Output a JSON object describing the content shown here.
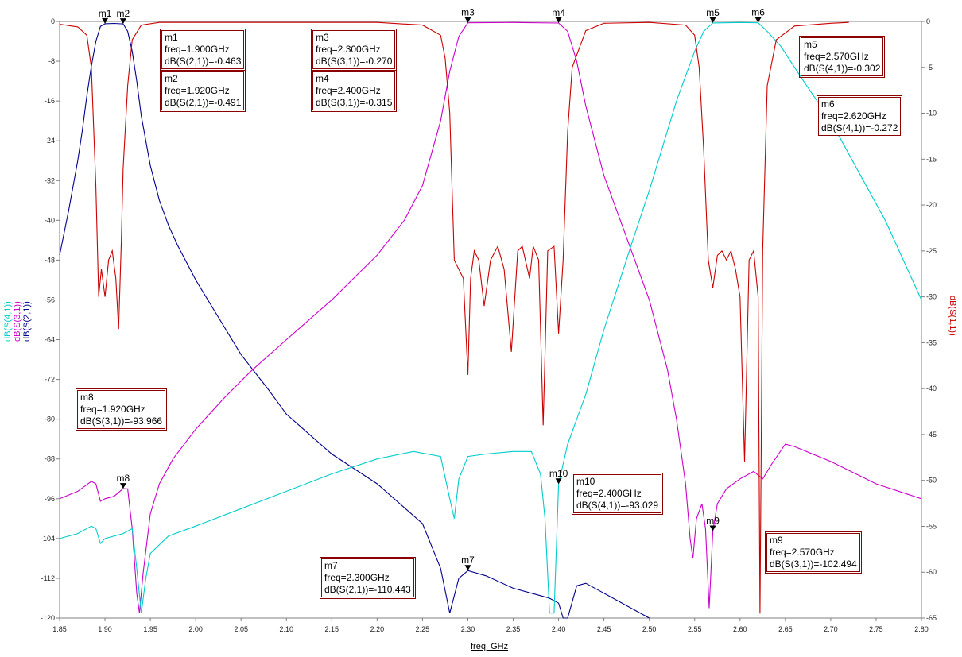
{
  "chart_data": {
    "type": "line",
    "xlabel": "freq, GHz",
    "xlim": [
      1.85,
      2.8
    ],
    "x_ticks": [
      "1.85",
      "1.90",
      "1.95",
      "2.00",
      "2.05",
      "2.10",
      "2.15",
      "2.20",
      "2.25",
      "2.30",
      "2.35",
      "2.40",
      "2.45",
      "2.50",
      "2.55",
      "2.60",
      "2.65",
      "2.70",
      "2.75",
      "2.80"
    ],
    "left_axis": {
      "labels": [
        "dB(S(4,1))",
        "dB(S(3,1))",
        "dB(S(2,1))"
      ],
      "ylim": [
        -120,
        0
      ],
      "ticks": [
        "0",
        "-8",
        "-16",
        "-24",
        "-32",
        "-40",
        "-48",
        "-56",
        "-64",
        "-72",
        "-80",
        "-88",
        "-96",
        "-104",
        "-112",
        "-120"
      ]
    },
    "right_axis": {
      "label": "dB(S(1,1))",
      "ylim": [
        -65,
        0
      ],
      "ticks": [
        "0",
        "-5",
        "-10",
        "-15",
        "-20",
        "-25",
        "-30",
        "-35",
        "-40",
        "-45",
        "-50",
        "-55",
        "-60",
        "-65"
      ]
    },
    "series": [
      {
        "name": "dB(S(2,1))",
        "axis": "left",
        "color": "#00008b",
        "points": [
          [
            1.85,
            -47
          ],
          [
            1.86,
            -38
          ],
          [
            1.87,
            -28
          ],
          [
            1.875,
            -22
          ],
          [
            1.88,
            -15
          ],
          [
            1.885,
            -9
          ],
          [
            1.89,
            -4
          ],
          [
            1.895,
            -1
          ],
          [
            1.9,
            -0.463
          ],
          [
            1.91,
            -0.4
          ],
          [
            1.92,
            -0.491
          ],
          [
            1.925,
            -2
          ],
          [
            1.93,
            -6
          ],
          [
            1.935,
            -12
          ],
          [
            1.94,
            -19
          ],
          [
            1.95,
            -29
          ],
          [
            1.96,
            -36
          ],
          [
            1.97,
            -41
          ],
          [
            1.98,
            -45
          ],
          [
            2.0,
            -52
          ],
          [
            2.02,
            -58
          ],
          [
            2.05,
            -67
          ],
          [
            2.08,
            -74
          ],
          [
            2.1,
            -79
          ],
          [
            2.15,
            -87
          ],
          [
            2.2,
            -93
          ],
          [
            2.25,
            -101
          ],
          [
            2.27,
            -110
          ],
          [
            2.28,
            -119
          ],
          [
            2.29,
            -112
          ],
          [
            2.3,
            -110.443
          ],
          [
            2.32,
            -111.5
          ],
          [
            2.35,
            -114
          ],
          [
            2.38,
            -115.5
          ],
          [
            2.39,
            -116
          ],
          [
            2.4,
            -117
          ],
          [
            2.405,
            -121
          ],
          [
            2.41,
            -121
          ],
          [
            2.42,
            -113.5
          ],
          [
            2.43,
            -113
          ],
          [
            2.45,
            -115
          ],
          [
            2.48,
            -118
          ],
          [
            2.5,
            -120
          ]
        ]
      },
      {
        "name": "dB(S(3,1))",
        "axis": "left",
        "color": "#cc00cc",
        "points": [
          [
            1.85,
            -96
          ],
          [
            1.87,
            -94.5
          ],
          [
            1.885,
            -92.5
          ],
          [
            1.89,
            -93
          ],
          [
            1.895,
            -96.5
          ],
          [
            1.9,
            -96
          ],
          [
            1.91,
            -95.5
          ],
          [
            1.92,
            -93.966
          ],
          [
            1.925,
            -94
          ],
          [
            1.93,
            -102
          ],
          [
            1.935,
            -115
          ],
          [
            1.938,
            -119
          ],
          [
            1.942,
            -111
          ],
          [
            1.95,
            -99
          ],
          [
            1.96,
            -93
          ],
          [
            1.975,
            -88
          ],
          [
            2.0,
            -82
          ],
          [
            2.03,
            -76
          ],
          [
            2.06,
            -70.5
          ],
          [
            2.1,
            -64
          ],
          [
            2.15,
            -56
          ],
          [
            2.2,
            -47
          ],
          [
            2.23,
            -40
          ],
          [
            2.25,
            -33
          ],
          [
            2.27,
            -20
          ],
          [
            2.28,
            -10
          ],
          [
            2.29,
            -3
          ],
          [
            2.3,
            -0.27
          ],
          [
            2.35,
            -0.2
          ],
          [
            2.4,
            -0.315
          ],
          [
            2.41,
            -2
          ],
          [
            2.42,
            -8
          ],
          [
            2.43,
            -17
          ],
          [
            2.45,
            -31
          ],
          [
            2.47,
            -41
          ],
          [
            2.5,
            -56
          ],
          [
            2.52,
            -70
          ],
          [
            2.53,
            -80
          ],
          [
            2.54,
            -93
          ],
          [
            2.545,
            -104
          ],
          [
            2.548,
            -108
          ],
          [
            2.552,
            -100
          ],
          [
            2.558,
            -97
          ],
          [
            2.562,
            -102
          ],
          [
            2.566,
            -118
          ],
          [
            2.57,
            -102.494
          ],
          [
            2.575,
            -97
          ],
          [
            2.585,
            -94
          ],
          [
            2.6,
            -92
          ],
          [
            2.615,
            -90.5
          ],
          [
            2.625,
            -92
          ],
          [
            2.635,
            -89
          ],
          [
            2.65,
            -85
          ],
          [
            2.66,
            -85.5
          ],
          [
            2.7,
            -88.5
          ],
          [
            2.75,
            -93
          ],
          [
            2.8,
            -96
          ]
        ]
      },
      {
        "name": "dB(S(4,1))",
        "axis": "left",
        "color": "#00cccc",
        "points": [
          [
            1.85,
            -104
          ],
          [
            1.87,
            -103
          ],
          [
            1.885,
            -101.5
          ],
          [
            1.89,
            -102
          ],
          [
            1.895,
            -105
          ],
          [
            1.9,
            -104
          ],
          [
            1.92,
            -103
          ],
          [
            1.93,
            -102
          ],
          [
            1.935,
            -110
          ],
          [
            1.94,
            -119
          ],
          [
            1.945,
            -112
          ],
          [
            1.95,
            -107
          ],
          [
            1.97,
            -103.5
          ],
          [
            2.0,
            -101.5
          ],
          [
            2.05,
            -98
          ],
          [
            2.1,
            -94.5
          ],
          [
            2.15,
            -91
          ],
          [
            2.2,
            -88
          ],
          [
            2.24,
            -86.5
          ],
          [
            2.27,
            -87.5
          ],
          [
            2.28,
            -96
          ],
          [
            2.285,
            -100
          ],
          [
            2.29,
            -92
          ],
          [
            2.3,
            -87.5
          ],
          [
            2.32,
            -87
          ],
          [
            2.35,
            -86.5
          ],
          [
            2.37,
            -86.5
          ],
          [
            2.38,
            -91
          ],
          [
            2.385,
            -100
          ],
          [
            2.39,
            -119
          ],
          [
            2.395,
            -119
          ],
          [
            2.4,
            -93.029
          ],
          [
            2.41,
            -85
          ],
          [
            2.43,
            -75
          ],
          [
            2.45,
            -62
          ],
          [
            2.48,
            -45
          ],
          [
            2.5,
            -34
          ],
          [
            2.53,
            -16
          ],
          [
            2.55,
            -6
          ],
          [
            2.56,
            -2
          ],
          [
            2.57,
            -0.302
          ],
          [
            2.6,
            -0.2
          ],
          [
            2.62,
            -0.272
          ],
          [
            2.63,
            -2
          ],
          [
            2.645,
            -5
          ],
          [
            2.67,
            -12
          ],
          [
            2.7,
            -20
          ],
          [
            2.73,
            -30
          ],
          [
            2.76,
            -40
          ],
          [
            2.8,
            -56
          ]
        ]
      },
      {
        "name": "dB(S(1,1))",
        "axis": "right",
        "color": "#cc0000",
        "points": [
          [
            1.85,
            -0.3
          ],
          [
            1.87,
            -0.6
          ],
          [
            1.88,
            -1.5
          ],
          [
            1.885,
            -5
          ],
          [
            1.89,
            -18
          ],
          [
            1.893,
            -30
          ],
          [
            1.896,
            -27
          ],
          [
            1.9,
            -30
          ],
          [
            1.904,
            -26
          ],
          [
            1.908,
            -25
          ],
          [
            1.912,
            -28
          ],
          [
            1.915,
            -33.5
          ],
          [
            1.918,
            -24
          ],
          [
            1.92,
            -16
          ],
          [
            1.925,
            -7
          ],
          [
            1.93,
            -2
          ],
          [
            1.94,
            -0.4
          ],
          [
            1.96,
            -0.1
          ],
          [
            2.2,
            -0.1
          ],
          [
            2.25,
            -0.4
          ],
          [
            2.27,
            -1.5
          ],
          [
            2.275,
            -4
          ],
          [
            2.28,
            -10
          ],
          [
            2.285,
            -26
          ],
          [
            2.29,
            -27
          ],
          [
            2.295,
            -28
          ],
          [
            2.3,
            -38.5
          ],
          [
            2.303,
            -28
          ],
          [
            2.307,
            -25
          ],
          [
            2.312,
            -26
          ],
          [
            2.318,
            -31
          ],
          [
            2.325,
            -26
          ],
          [
            2.333,
            -24.5
          ],
          [
            2.34,
            -27
          ],
          [
            2.348,
            -36
          ],
          [
            2.355,
            -25
          ],
          [
            2.36,
            -24.5
          ],
          [
            2.368,
            -28
          ],
          [
            2.372,
            -24.5
          ],
          [
            2.378,
            -26
          ],
          [
            2.383,
            -44
          ],
          [
            2.388,
            -25
          ],
          [
            2.395,
            -24.5
          ],
          [
            2.4,
            -34
          ],
          [
            2.405,
            -26
          ],
          [
            2.41,
            -12
          ],
          [
            2.415,
            -5
          ],
          [
            2.43,
            -1
          ],
          [
            2.45,
            -0.2
          ],
          [
            2.5,
            -0.1
          ],
          [
            2.54,
            -0.4
          ],
          [
            2.55,
            -1.5
          ],
          [
            2.555,
            -5
          ],
          [
            2.56,
            -14
          ],
          [
            2.565,
            -26
          ],
          [
            2.57,
            -29
          ],
          [
            2.575,
            -25.5
          ],
          [
            2.58,
            -25
          ],
          [
            2.585,
            -26
          ],
          [
            2.59,
            -25
          ],
          [
            2.595,
            -27
          ],
          [
            2.6,
            -30
          ],
          [
            2.605,
            -48
          ],
          [
            2.61,
            -26
          ],
          [
            2.615,
            -25
          ],
          [
            2.62,
            -30
          ],
          [
            2.622,
            -64.5
          ],
          [
            2.625,
            -25
          ],
          [
            2.63,
            -7
          ],
          [
            2.64,
            -2
          ],
          [
            2.66,
            -0.5
          ],
          [
            2.7,
            -0.2
          ],
          [
            2.72,
            -0.1
          ]
        ]
      }
    ],
    "markers": [
      {
        "name": "m1",
        "freq": "freq=1.900GHz",
        "val": "dB(S(2,1))=-0.463",
        "x": 1.9,
        "y": -0.463,
        "axis": "left"
      },
      {
        "name": "m2",
        "freq": "freq=1.920GHz",
        "val": "dB(S(2,1))=-0.491",
        "x": 1.92,
        "y": -0.491,
        "axis": "left"
      },
      {
        "name": "m3",
        "freq": "freq=2.300GHz",
        "val": "dB(S(3,1))=-0.270",
        "x": 2.3,
        "y": -0.27,
        "axis": "left"
      },
      {
        "name": "m4",
        "freq": "freq=2.400GHz",
        "val": "dB(S(3,1))=-0.315",
        "x": 2.4,
        "y": -0.315,
        "axis": "left"
      },
      {
        "name": "m5",
        "freq": "freq=2.570GHz",
        "val": "dB(S(4,1))=-0.302",
        "x": 2.57,
        "y": -0.302,
        "axis": "left"
      },
      {
        "name": "m6",
        "freq": "freq=2.620GHz",
        "val": "dB(S(4,1))=-0.272",
        "x": 2.62,
        "y": -0.272,
        "axis": "left"
      },
      {
        "name": "m7",
        "freq": "freq=2.300GHz",
        "val": "dB(S(2,1))=-110.443",
        "x": 2.3,
        "y": -110.443,
        "axis": "left"
      },
      {
        "name": "m8",
        "freq": "freq=1.920GHz",
        "val": "dB(S(3,1))=-93.966",
        "x": 1.92,
        "y": -93.966,
        "axis": "left"
      },
      {
        "name": "m9",
        "freq": "freq=2.570GHz",
        "val": "dB(S(3,1))=-102.494",
        "x": 2.57,
        "y": -102.494,
        "axis": "left"
      },
      {
        "name": "m10",
        "freq": "freq=2.400GHz",
        "val": "dB(S(4,1))=-93.029",
        "x": 2.4,
        "y": -93.029,
        "axis": "left"
      }
    ]
  }
}
